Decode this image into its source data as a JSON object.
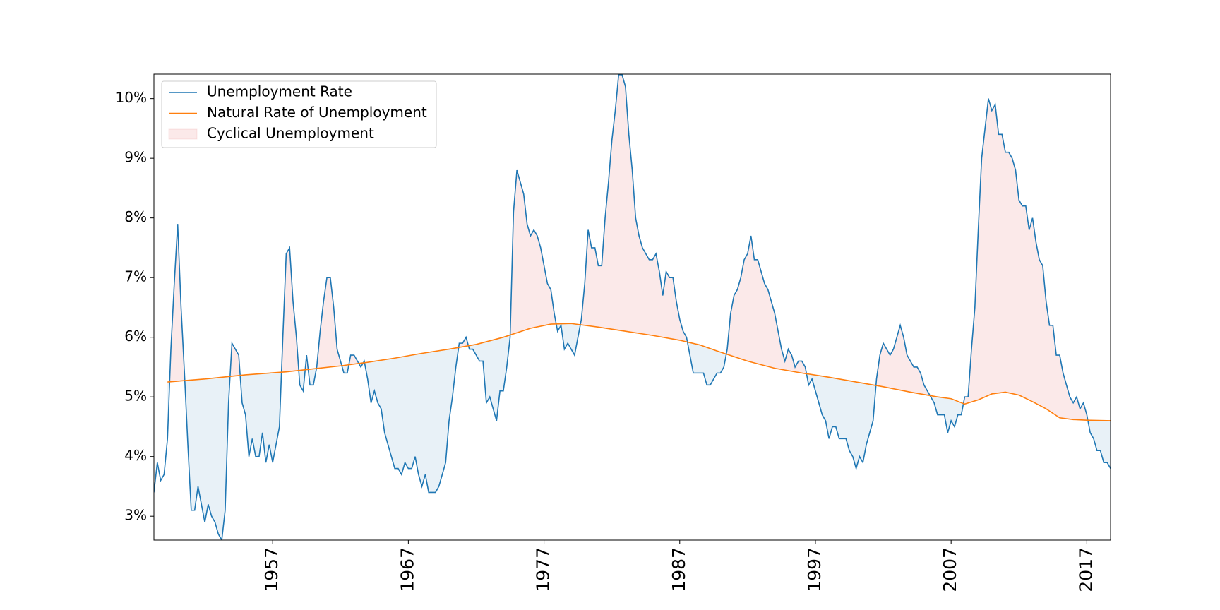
{
  "chart_data": {
    "type": "line",
    "x": [
      1948.25,
      1948.5,
      1948.75,
      1949,
      1949.25,
      1949.5,
      1949.75,
      1950,
      1950.25,
      1950.5,
      1950.75,
      1951,
      1951.25,
      1951.5,
      1951.75,
      1952,
      1952.25,
      1952.5,
      1952.75,
      1953,
      1953.25,
      1953.5,
      1953.75,
      1954,
      1954.25,
      1954.5,
      1954.75,
      1955,
      1955.25,
      1955.5,
      1955.75,
      1956,
      1956.25,
      1956.5,
      1956.75,
      1957,
      1957.25,
      1957.5,
      1957.75,
      1958,
      1958.25,
      1958.5,
      1958.75,
      1959,
      1959.25,
      1959.5,
      1959.75,
      1960,
      1960.25,
      1960.5,
      1960.75,
      1961,
      1961.25,
      1961.5,
      1961.75,
      1962,
      1962.25,
      1962.5,
      1962.75,
      1963,
      1963.25,
      1963.5,
      1963.75,
      1964,
      1964.25,
      1964.5,
      1964.75,
      1965,
      1965.25,
      1965.5,
      1965.75,
      1966,
      1966.25,
      1966.5,
      1966.75,
      1967,
      1967.25,
      1967.5,
      1967.75,
      1968,
      1968.25,
      1968.5,
      1968.75,
      1969,
      1969.25,
      1969.5,
      1969.75,
      1970,
      1970.25,
      1970.5,
      1970.75,
      1971,
      1971.25,
      1971.5,
      1971.75,
      1972,
      1972.25,
      1972.5,
      1972.75,
      1973,
      1973.25,
      1973.5,
      1973.75,
      1974,
      1974.25,
      1974.5,
      1974.75,
      1975,
      1975.25,
      1975.5,
      1975.75,
      1976,
      1976.25,
      1976.5,
      1976.75,
      1977,
      1977.25,
      1977.5,
      1977.75,
      1978,
      1978.25,
      1978.5,
      1978.75,
      1979,
      1979.25,
      1979.5,
      1979.75,
      1980,
      1980.25,
      1980.5,
      1980.75,
      1981,
      1981.25,
      1981.5,
      1981.75,
      1982,
      1982.25,
      1982.5,
      1982.75,
      1983,
      1983.25,
      1983.5,
      1983.75,
      1984,
      1984.25,
      1984.5,
      1984.75,
      1985,
      1985.25,
      1985.5,
      1985.75,
      1986,
      1986.25,
      1986.5,
      1986.75,
      1987,
      1987.25,
      1987.5,
      1987.75,
      1988,
      1988.25,
      1988.5,
      1988.75,
      1989,
      1989.25,
      1989.5,
      1989.75,
      1990,
      1990.25,
      1990.5,
      1990.75,
      1991,
      1991.25,
      1991.5,
      1991.75,
      1992,
      1992.25,
      1992.5,
      1992.75,
      1993,
      1993.25,
      1993.5,
      1993.75,
      1994,
      1994.25,
      1994.5,
      1994.75,
      1995,
      1995.25,
      1995.5,
      1995.75,
      1996,
      1996.25,
      1996.5,
      1996.75,
      1997,
      1997.25,
      1997.5,
      1997.75,
      1998,
      1998.25,
      1998.5,
      1998.75,
      1999,
      1999.25,
      1999.5,
      1999.75,
      2000,
      2000.25,
      2000.5,
      2000.75,
      2001,
      2001.25,
      2001.5,
      2001.75,
      2002,
      2002.25,
      2002.5,
      2002.75,
      2003,
      2003.25,
      2003.5,
      2003.75,
      2004,
      2004.25,
      2004.5,
      2004.75,
      2005,
      2005.25,
      2005.5,
      2005.75,
      2006,
      2006.25,
      2006.5,
      2006.75,
      2007,
      2007.25,
      2007.5,
      2007.75,
      2008,
      2008.25,
      2008.5,
      2008.75,
      2009,
      2009.25,
      2009.5,
      2009.75,
      2010,
      2010.25,
      2010.5,
      2010.75,
      2011,
      2011.25,
      2011.5,
      2011.75,
      2012,
      2012.25,
      2012.5,
      2012.75,
      2013,
      2013.25,
      2013.5,
      2013.75,
      2014,
      2014.25,
      2014.5,
      2014.75,
      2015,
      2015.25,
      2015.5,
      2015.75,
      2016,
      2016.25,
      2016.5,
      2016.75,
      2017,
      2017.25,
      2017.5,
      2017.75,
      2018,
      2018.25,
      2018.5,
      2018.75
    ],
    "series": [
      {
        "name": "Unemployment Rate",
        "color": "#1f77b4",
        "values": [
          3.4,
          3.9,
          3.6,
          3.7,
          4.3,
          5.8,
          6.9,
          7.9,
          6.5,
          5.4,
          4.2,
          3.1,
          3.1,
          3.5,
          3.2,
          2.9,
          3.2,
          3.0,
          2.9,
          2.7,
          2.6,
          3.1,
          4.9,
          5.9,
          5.8,
          5.7,
          4.9,
          4.7,
          4.0,
          4.3,
          4.0,
          4.0,
          4.4,
          3.9,
          4.2,
          3.9,
          4.2,
          4.5,
          6.0,
          7.4,
          7.5,
          6.6,
          6.0,
          5.2,
          5.1,
          5.7,
          5.2,
          5.2,
          5.5,
          6.1,
          6.6,
          7.0,
          7.0,
          6.5,
          5.8,
          5.6,
          5.4,
          5.4,
          5.7,
          5.7,
          5.6,
          5.5,
          5.6,
          5.3,
          4.9,
          5.1,
          4.9,
          4.8,
          4.4,
          4.2,
          4.0,
          3.8,
          3.8,
          3.7,
          3.9,
          3.8,
          3.8,
          4.0,
          3.7,
          3.5,
          3.7,
          3.4,
          3.4,
          3.4,
          3.5,
          3.7,
          3.9,
          4.6,
          5.0,
          5.5,
          5.9,
          5.9,
          6.0,
          5.8,
          5.8,
          5.7,
          5.6,
          5.6,
          4.9,
          5.0,
          4.8,
          4.6,
          5.1,
          5.1,
          5.5,
          6.0,
          8.1,
          8.8,
          8.6,
          8.4,
          7.9,
          7.7,
          7.8,
          7.7,
          7.5,
          7.2,
          6.9,
          6.8,
          6.4,
          6.1,
          6.2,
          5.8,
          5.9,
          5.8,
          5.7,
          6.0,
          6.3,
          6.9,
          7.8,
          7.5,
          7.5,
          7.2,
          7.2,
          8.0,
          8.6,
          9.3,
          9.8,
          10.4,
          10.4,
          10.2,
          9.4,
          8.8,
          8.0,
          7.7,
          7.5,
          7.4,
          7.3,
          7.3,
          7.4,
          7.1,
          6.7,
          7.1,
          7.0,
          7.0,
          6.6,
          6.3,
          6.1,
          6.0,
          5.7,
          5.4,
          5.4,
          5.4,
          5.4,
          5.2,
          5.2,
          5.3,
          5.4,
          5.4,
          5.5,
          5.8,
          6.4,
          6.7,
          6.8,
          7.0,
          7.3,
          7.4,
          7.7,
          7.3,
          7.3,
          7.1,
          6.9,
          6.8,
          6.6,
          6.4,
          6.1,
          5.8,
          5.6,
          5.8,
          5.7,
          5.5,
          5.6,
          5.6,
          5.5,
          5.2,
          5.3,
          5.1,
          4.9,
          4.7,
          4.6,
          4.3,
          4.5,
          4.5,
          4.3,
          4.3,
          4.3,
          4.1,
          4.0,
          3.8,
          4.0,
          3.9,
          4.2,
          4.4,
          4.6,
          5.3,
          5.7,
          5.9,
          5.8,
          5.7,
          5.8,
          6.0,
          6.2,
          6.0,
          5.7,
          5.6,
          5.5,
          5.5,
          5.4,
          5.2,
          5.1,
          5.0,
          4.9,
          4.7,
          4.7,
          4.7,
          4.4,
          4.6,
          4.5,
          4.7,
          4.7,
          5.0,
          5.0,
          5.8,
          6.5,
          7.8,
          9.0,
          9.5,
          10.0,
          9.8,
          9.9,
          9.4,
          9.4,
          9.1,
          9.1,
          9.0,
          8.8,
          8.3,
          8.2,
          8.2,
          7.8,
          8.0,
          7.6,
          7.3,
          7.2,
          6.6,
          6.2,
          6.2,
          5.7,
          5.7,
          5.4,
          5.2,
          5.0,
          4.9,
          5.0,
          4.8,
          4.9,
          4.7,
          4.4,
          4.3,
          4.1,
          4.1,
          3.9,
          3.9,
          3.8
        ]
      },
      {
        "name": "Natural Rate of Unemployment",
        "color": "#ff7f0e",
        "x": [
          1949.25,
          1952,
          1955,
          1958,
          1960,
          1962,
          1964,
          1966,
          1968,
          1970,
          1972,
          1974,
          1976,
          1977.5,
          1979,
          1981,
          1983,
          1985,
          1987,
          1988.5,
          1990,
          1992,
          1994,
          1996,
          1998,
          2000,
          2002,
          2004,
          2006,
          2007,
          2008,
          2009,
          2010,
          2011,
          2012,
          2013,
          2014,
          2015,
          2016,
          2017,
          2018.75
        ],
        "values": [
          5.25,
          5.3,
          5.37,
          5.42,
          5.47,
          5.52,
          5.58,
          5.65,
          5.73,
          5.8,
          5.88,
          6.0,
          6.15,
          6.22,
          6.23,
          6.17,
          6.1,
          6.03,
          5.95,
          5.87,
          5.75,
          5.6,
          5.48,
          5.4,
          5.33,
          5.25,
          5.17,
          5.08,
          5.0,
          4.97,
          4.88,
          4.95,
          5.05,
          5.08,
          5.03,
          4.92,
          4.8,
          4.65,
          4.62,
          4.61,
          4.6
        ]
      }
    ],
    "fill": {
      "name": "Cyclical Unemployment",
      "above_color": "#d62728",
      "below_color": "#1f77b4",
      "alpha": 0.1
    },
    "xlim": [
      1948.25,
      2018.75
    ],
    "xticks": [
      1957,
      1967,
      1977,
      1987,
      1997,
      2007,
      2017
    ],
    "ylim": [
      2.6,
      10.41
    ],
    "yticks": [
      {
        "value": 3,
        "label": "3%"
      },
      {
        "value": 4,
        "label": "4%"
      },
      {
        "value": 5,
        "label": "5%"
      },
      {
        "value": 6,
        "label": "6%"
      },
      {
        "value": 7,
        "label": "7%"
      },
      {
        "value": 8,
        "label": "8%"
      },
      {
        "value": 9,
        "label": "9%"
      },
      {
        "value": 10,
        "label": "10%"
      }
    ],
    "legend": "upper left"
  }
}
